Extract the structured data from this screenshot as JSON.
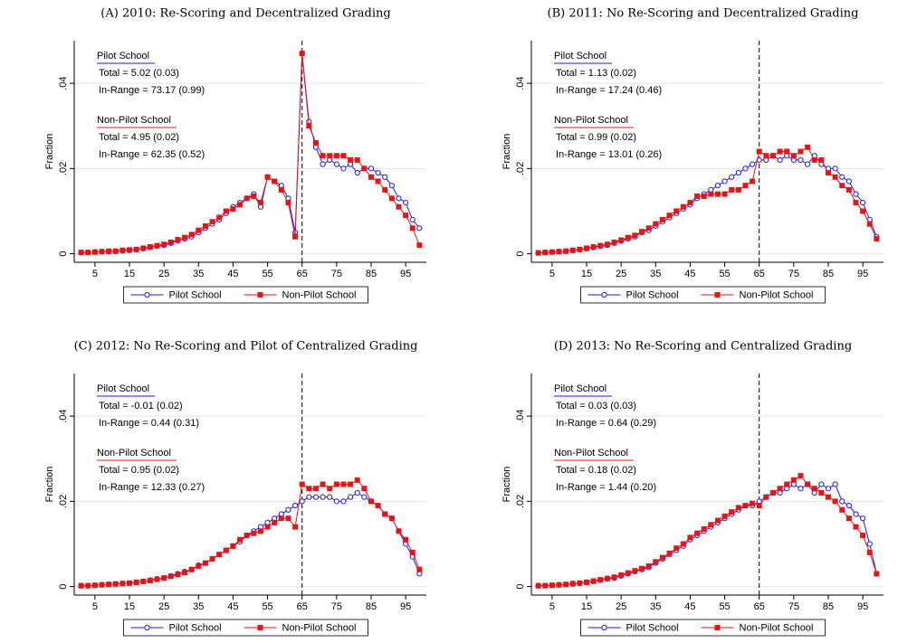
{
  "chart_data": [
    {
      "type": "line",
      "title": "(A) 2010: Re-Scoring and Decentralized Grading",
      "y_label": "Fraction",
      "x": [
        1,
        3,
        5,
        7,
        9,
        11,
        13,
        15,
        17,
        19,
        21,
        23,
        25,
        27,
        29,
        31,
        33,
        35,
        37,
        39,
        41,
        43,
        45,
        47,
        49,
        51,
        53,
        55,
        57,
        59,
        61,
        63,
        65,
        67,
        69,
        71,
        73,
        75,
        77,
        79,
        81,
        83,
        85,
        87,
        89,
        91,
        93,
        95,
        97,
        99
      ],
      "series": [
        {
          "name": "Pilot School",
          "color": "#1a1aff",
          "marker": "circle",
          "values": [
            0.0003,
            0.0003,
            0.0004,
            0.0005,
            0.0005,
            0.0006,
            0.0007,
            0.0008,
            0.001,
            0.0012,
            0.0015,
            0.0018,
            0.002,
            0.0025,
            0.003,
            0.0035,
            0.004,
            0.005,
            0.006,
            0.007,
            0.008,
            0.0095,
            0.011,
            0.012,
            0.013,
            0.014,
            0.011,
            0.018,
            0.017,
            0.016,
            0.013,
            0.005,
            0.047,
            0.031,
            0.025,
            0.021,
            0.022,
            0.021,
            0.02,
            0.021,
            0.019,
            0.02,
            0.02,
            0.019,
            0.018,
            0.016,
            0.013,
            0.012,
            0.008,
            0.006
          ]
        },
        {
          "name": "Non-Pilot School",
          "color": "#e81414",
          "marker": "square",
          "values": [
            0.0003,
            0.0003,
            0.0004,
            0.0005,
            0.0006,
            0.0006,
            0.0008,
            0.0009,
            0.001,
            0.0013,
            0.0016,
            0.0019,
            0.0022,
            0.0027,
            0.0033,
            0.0038,
            0.0045,
            0.0055,
            0.0065,
            0.0075,
            0.0085,
            0.01,
            0.0105,
            0.0115,
            0.013,
            0.0135,
            0.012,
            0.018,
            0.017,
            0.015,
            0.012,
            0.004,
            0.047,
            0.03,
            0.026,
            0.023,
            0.023,
            0.023,
            0.023,
            0.022,
            0.022,
            0.02,
            0.018,
            0.017,
            0.015,
            0.013,
            0.011,
            0.009,
            0.006,
            0.002
          ]
        }
      ],
      "xlim": [
        -1,
        101
      ],
      "ylim": [
        -0.002,
        0.05
      ],
      "xticks": [
        5,
        15,
        25,
        35,
        45,
        55,
        65,
        75,
        85,
        95
      ],
      "yticks": [
        0,
        {
          "value": 0.02,
          "label": ".02"
        },
        {
          "value": 0.04,
          "label": ".04"
        }
      ],
      "grid": true,
      "cutoff": 65,
      "legend": "bottom",
      "annotations": [
        {
          "heading": "Pilot School",
          "lines": [
            "Total = 5.02 (0.03)",
            "In-Range = 73.17 (0.99)"
          ]
        },
        {
          "heading": "Non-Pilot School",
          "lines": [
            "Total = 4.95 (0.02)",
            "In-Range = 62.35 (0.52)"
          ]
        }
      ]
    },
    {
      "type": "line",
      "title": "(B) 2011: No Re-Scoring and Decentralized Grading",
      "y_label": "Fraction",
      "x": [
        1,
        3,
        5,
        7,
        9,
        11,
        13,
        15,
        17,
        19,
        21,
        23,
        25,
        27,
        29,
        31,
        33,
        35,
        37,
        39,
        41,
        43,
        45,
        47,
        49,
        51,
        53,
        55,
        57,
        59,
        61,
        63,
        65,
        67,
        69,
        71,
        73,
        75,
        77,
        79,
        81,
        83,
        85,
        87,
        89,
        91,
        93,
        95,
        97,
        99
      ],
      "series": [
        {
          "name": "Pilot School",
          "color": "#1a1aff",
          "marker": "circle",
          "values": [
            0.0002,
            0.0003,
            0.0004,
            0.0005,
            0.0006,
            0.0008,
            0.001,
            0.0012,
            0.0015,
            0.0018,
            0.002,
            0.0025,
            0.003,
            0.0035,
            0.004,
            0.005,
            0.0055,
            0.0065,
            0.0075,
            0.0085,
            0.0095,
            0.0105,
            0.0115,
            0.013,
            0.014,
            0.015,
            0.016,
            0.017,
            0.018,
            0.019,
            0.02,
            0.021,
            0.022,
            0.022,
            0.023,
            0.022,
            0.023,
            0.022,
            0.022,
            0.021,
            0.023,
            0.021,
            0.02,
            0.02,
            0.018,
            0.017,
            0.014,
            0.012,
            0.008,
            0.004
          ]
        },
        {
          "name": "Non-Pilot School",
          "color": "#e81414",
          "marker": "square",
          "values": [
            0.0002,
            0.0003,
            0.0004,
            0.0005,
            0.0006,
            0.0008,
            0.001,
            0.0013,
            0.0016,
            0.0019,
            0.0022,
            0.0027,
            0.0032,
            0.0038,
            0.0043,
            0.0052,
            0.006,
            0.007,
            0.008,
            0.009,
            0.01,
            0.011,
            0.012,
            0.0135,
            0.0135,
            0.014,
            0.014,
            0.014,
            0.015,
            0.015,
            0.016,
            0.017,
            0.024,
            0.023,
            0.023,
            0.024,
            0.024,
            0.023,
            0.024,
            0.025,
            0.022,
            0.022,
            0.019,
            0.018,
            0.016,
            0.015,
            0.012,
            0.01,
            0.007,
            0.0035
          ]
        }
      ],
      "xlim": [
        -1,
        101
      ],
      "ylim": [
        -0.002,
        0.05
      ],
      "xticks": [
        5,
        15,
        25,
        35,
        45,
        55,
        65,
        75,
        85,
        95
      ],
      "yticks": [
        0,
        {
          "value": 0.02,
          "label": ".02"
        },
        {
          "value": 0.04,
          "label": ".04"
        }
      ],
      "grid": true,
      "cutoff": 65,
      "legend": "bottom",
      "annotations": [
        {
          "heading": "Pilot School",
          "lines": [
            "Total = 1.13 (0.02)",
            "In-Range = 17.24 (0.46)"
          ]
        },
        {
          "heading": "Non-Pilot School",
          "lines": [
            "Total = 0.99 (0.02)",
            "In-Range = 13.01 (0.26)"
          ]
        }
      ]
    },
    {
      "type": "line",
      "title": "(C) 2012: No Re-Scoring and Pilot of Centralized Grading",
      "y_label": "Fraction",
      "x": [
        1,
        3,
        5,
        7,
        9,
        11,
        13,
        15,
        17,
        19,
        21,
        23,
        25,
        27,
        29,
        31,
        33,
        35,
        37,
        39,
        41,
        43,
        45,
        47,
        49,
        51,
        53,
        55,
        57,
        59,
        61,
        63,
        65,
        67,
        69,
        71,
        73,
        75,
        77,
        79,
        81,
        83,
        85,
        87,
        89,
        91,
        93,
        95,
        97,
        99
      ],
      "series": [
        {
          "name": "Pilot School",
          "color": "#1a1aff",
          "marker": "circle",
          "values": [
            0.0002,
            0.0002,
            0.0003,
            0.0004,
            0.0005,
            0.0006,
            0.0007,
            0.0008,
            0.001,
            0.0012,
            0.0015,
            0.0018,
            0.002,
            0.0025,
            0.003,
            0.0035,
            0.004,
            0.005,
            0.0055,
            0.0065,
            0.0075,
            0.0085,
            0.0095,
            0.0105,
            0.012,
            0.013,
            0.014,
            0.015,
            0.016,
            0.017,
            0.018,
            0.019,
            0.02,
            0.021,
            0.021,
            0.021,
            0.021,
            0.02,
            0.02,
            0.021,
            0.022,
            0.021,
            0.02,
            0.019,
            0.017,
            0.016,
            0.013,
            0.01,
            0.007,
            0.003
          ]
        },
        {
          "name": "Non-Pilot School",
          "color": "#e81414",
          "marker": "square",
          "values": [
            0.0002,
            0.0002,
            0.0003,
            0.0004,
            0.0005,
            0.0006,
            0.0007,
            0.0008,
            0.001,
            0.0012,
            0.0014,
            0.0017,
            0.002,
            0.0024,
            0.0028,
            0.0033,
            0.004,
            0.0048,
            0.0055,
            0.0065,
            0.0075,
            0.0085,
            0.0095,
            0.011,
            0.012,
            0.0125,
            0.013,
            0.014,
            0.015,
            0.016,
            0.016,
            0.014,
            0.024,
            0.023,
            0.023,
            0.024,
            0.023,
            0.024,
            0.024,
            0.024,
            0.025,
            0.023,
            0.02,
            0.019,
            0.017,
            0.016,
            0.013,
            0.011,
            0.008,
            0.004
          ]
        }
      ],
      "xlim": [
        -1,
        101
      ],
      "ylim": [
        -0.002,
        0.05
      ],
      "xticks": [
        5,
        15,
        25,
        35,
        45,
        55,
        65,
        75,
        85,
        95
      ],
      "yticks": [
        0,
        {
          "value": 0.02,
          "label": ".02"
        },
        {
          "value": 0.04,
          "label": ".04"
        }
      ],
      "grid": true,
      "cutoff": 65,
      "legend": "bottom",
      "annotations": [
        {
          "heading": "Pilot School",
          "lines": [
            "Total = -0.01 (0.02)",
            "In-Range = 0.44 (0.31)"
          ]
        },
        {
          "heading": "Non-Pilot School",
          "lines": [
            "Total = 0.95 (0.02)",
            "In-Range = 12.33 (0.27)"
          ]
        }
      ]
    },
    {
      "type": "line",
      "title": "(D) 2013: No Re-Scoring and Centralized Grading",
      "y_label": "Fraction",
      "x": [
        1,
        3,
        5,
        7,
        9,
        11,
        13,
        15,
        17,
        19,
        21,
        23,
        25,
        27,
        29,
        31,
        33,
        35,
        37,
        39,
        41,
        43,
        45,
        47,
        49,
        51,
        53,
        55,
        57,
        59,
        61,
        63,
        65,
        67,
        69,
        71,
        73,
        75,
        77,
        79,
        81,
        83,
        85,
        87,
        89,
        91,
        93,
        95,
        97,
        99
      ],
      "series": [
        {
          "name": "Pilot School",
          "color": "#1a1aff",
          "marker": "circle",
          "values": [
            0.0002,
            0.0002,
            0.0003,
            0.0004,
            0.0005,
            0.0006,
            0.0008,
            0.001,
            0.0012,
            0.0015,
            0.0018,
            0.002,
            0.0025,
            0.003,
            0.0035,
            0.004,
            0.0045,
            0.0055,
            0.0065,
            0.0075,
            0.0085,
            0.0095,
            0.011,
            0.012,
            0.013,
            0.014,
            0.015,
            0.016,
            0.017,
            0.018,
            0.019,
            0.019,
            0.02,
            0.021,
            0.022,
            0.022,
            0.023,
            0.024,
            0.023,
            0.024,
            0.022,
            0.024,
            0.023,
            0.024,
            0.02,
            0.019,
            0.017,
            0.016,
            0.01,
            0.003
          ]
        },
        {
          "name": "Non-Pilot School",
          "color": "#e81414",
          "marker": "square",
          "values": [
            0.0002,
            0.0002,
            0.0003,
            0.0004,
            0.0005,
            0.0007,
            0.0008,
            0.001,
            0.0013,
            0.0016,
            0.0019,
            0.0022,
            0.0027,
            0.0032,
            0.0037,
            0.0042,
            0.0048,
            0.0058,
            0.0068,
            0.0078,
            0.009,
            0.01,
            0.0115,
            0.0125,
            0.0135,
            0.0145,
            0.0155,
            0.0165,
            0.0175,
            0.0185,
            0.019,
            0.0195,
            0.019,
            0.021,
            0.022,
            0.023,
            0.024,
            0.025,
            0.026,
            0.024,
            0.023,
            0.022,
            0.021,
            0.02,
            0.018,
            0.016,
            0.014,
            0.012,
            0.008,
            0.003
          ]
        }
      ],
      "xlim": [
        -1,
        101
      ],
      "ylim": [
        -0.002,
        0.05
      ],
      "xticks": [
        5,
        15,
        25,
        35,
        45,
        55,
        65,
        75,
        85,
        95
      ],
      "yticks": [
        0,
        {
          "value": 0.02,
          "label": ".02"
        },
        {
          "value": 0.04,
          "label": ".04"
        }
      ],
      "grid": true,
      "cutoff": 65,
      "legend": "bottom",
      "annotations": [
        {
          "heading": "Pilot School",
          "lines": [
            "Total = 0.03 (0.03)",
            "In-Range = 0.64 (0.29)"
          ]
        },
        {
          "heading": "Non-Pilot School",
          "lines": [
            "Total = 0.18 (0.02)",
            "In-Range = 1.44 (0.20)"
          ]
        }
      ]
    }
  ]
}
